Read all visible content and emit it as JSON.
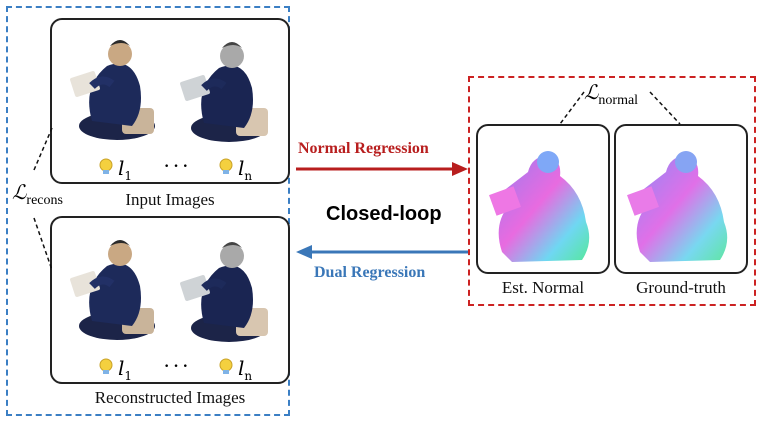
{
  "left_group": {
    "loss_label": "ℒ",
    "loss_subscript": "recons",
    "input_panel": {
      "caption": "Input Images",
      "light_first": "l",
      "light_first_sub": "1",
      "ellipsis": "· · ·",
      "light_last": "l",
      "light_last_sub": "n"
    },
    "recon_panel": {
      "caption": "Reconstructed Images",
      "light_first": "l",
      "light_first_sub": "1",
      "ellipsis": "· · ·",
      "light_last": "l",
      "light_last_sub": "n"
    }
  },
  "middle": {
    "forward_label": "Normal Regression",
    "center_label": "Closed-loop",
    "backward_label": "Dual Regression"
  },
  "right_group": {
    "loss_label": "ℒ",
    "loss_subscript": "normal",
    "est_caption": "Est. Normal",
    "gt_caption": "Ground-truth"
  },
  "colors": {
    "left_dash": "#3b7fc4",
    "right_dash": "#cc2222",
    "forward_arrow": "#b81e1e",
    "backward_arrow": "#3a77b8"
  }
}
